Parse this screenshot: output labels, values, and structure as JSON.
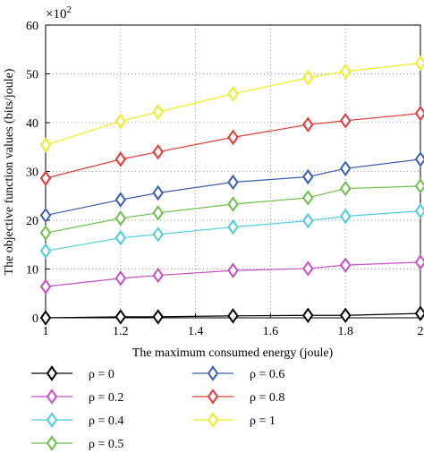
{
  "chart_data": {
    "type": "line",
    "title": "",
    "xlabel": "The maximum consumed energy (joule)",
    "ylabel": "The objective function values (bits/joule)",
    "y_multiplier": "×10",
    "y_multiplier_exp": "2",
    "xlim": [
      1,
      2
    ],
    "ylim": [
      0,
      60
    ],
    "x_ticks": [
      "1",
      "1.2",
      "1.4",
      "1.6",
      "1.8",
      "2"
    ],
    "y_ticks": [
      "0",
      "10",
      "20",
      "30",
      "40",
      "50",
      "60"
    ],
    "grid": true,
    "legend_position": "bottom",
    "x": [
      1,
      1.2,
      1.3,
      1.5,
      1.7,
      1.8,
      2
    ],
    "series": [
      {
        "name": "ρ = 0",
        "color": "#000000",
        "marker_fill": "#ffffff",
        "values": [
          0,
          0.2,
          0.2,
          0.4,
          0.5,
          0.5,
          0.9
        ]
      },
      {
        "name": "ρ = 0.2",
        "color": "#c64fc6",
        "marker_fill": "#ffffff",
        "values": [
          6.4,
          8.1,
          8.7,
          9.7,
          10.1,
          10.8,
          11.4
        ]
      },
      {
        "name": "ρ = 0.4",
        "color": "#4fcbe0",
        "marker_fill": "#ffffff",
        "values": [
          13.7,
          16.4,
          17.1,
          18.6,
          19.9,
          20.8,
          21.9
        ]
      },
      {
        "name": "ρ = 0.5",
        "color": "#6cc04a",
        "marker_fill": "#ffffff",
        "values": [
          17.4,
          20.4,
          21.5,
          23.3,
          24.6,
          26.5,
          27.0
        ]
      },
      {
        "name": "ρ = 0.6",
        "color": "#3a5fb5",
        "marker_fill": "#ffffff",
        "values": [
          21.0,
          24.2,
          25.6,
          27.8,
          28.9,
          30.6,
          32.5
        ]
      },
      {
        "name": "ρ = 0.8",
        "color": "#e53935",
        "marker_fill": "#ffffff",
        "values": [
          28.6,
          32.5,
          34.0,
          37.0,
          39.6,
          40.4,
          41.9
        ]
      },
      {
        "name": "ρ = 1",
        "color": "#f2ec1f",
        "marker_fill": "#ffffff",
        "values": [
          35.4,
          40.3,
          42.2,
          45.9,
          49.2,
          50.5,
          52.2
        ]
      }
    ]
  }
}
